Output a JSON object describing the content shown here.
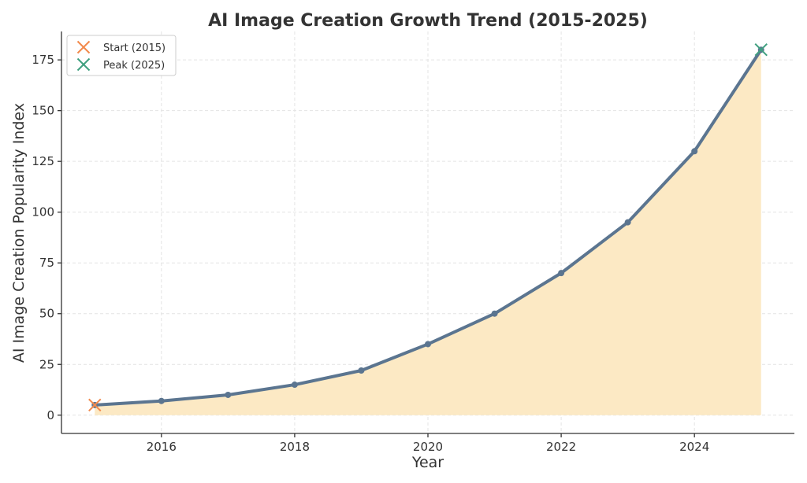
{
  "chart_data": {
    "type": "area",
    "title": "AI Image Creation Growth Trend (2015-2025)",
    "xlabel": "Year",
    "ylabel": "AI Image Creation Popularity Index",
    "xlim": [
      2014.5,
      2025.5
    ],
    "ylim": [
      -9,
      189
    ],
    "xticks": [
      2016,
      2018,
      2020,
      2022,
      2024
    ],
    "yticks": [
      0,
      25,
      50,
      75,
      100,
      125,
      150,
      175
    ],
    "grid": true,
    "legend_position": "top-left",
    "series": [
      {
        "name": "Popularity Index",
        "x": [
          2015,
          2016,
          2017,
          2018,
          2019,
          2020,
          2021,
          2022,
          2023,
          2024,
          2025
        ],
        "values": [
          5,
          7,
          10,
          15,
          22,
          35,
          50,
          70,
          95,
          130,
          180
        ]
      }
    ],
    "highlights": [
      {
        "label": "Start (2015)",
        "x": 2015,
        "y": 5,
        "marker": "x"
      },
      {
        "label": "Peak (2025)",
        "x": 2025,
        "y": 180,
        "marker": "x"
      }
    ],
    "colors": {
      "line": "#5b7590",
      "fill": "#fce9c4",
      "start_marker": "#f28a4c",
      "peak_marker": "#3fa07f",
      "legend_border": "#cccccc"
    }
  }
}
